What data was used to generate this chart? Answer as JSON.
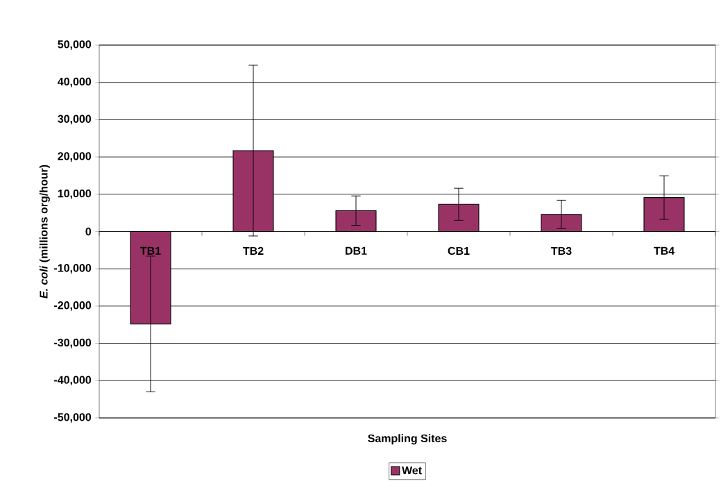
{
  "chart_data": {
    "type": "bar",
    "xlabel": "Sampling Sites",
    "ylabel": "*E. coli* (millions org/hour)",
    "categories": [
      "TB1",
      "TB2",
      "DB1",
      "CB1",
      "TB3",
      "TB4"
    ],
    "series": [
      {
        "name": "Wet",
        "color": "#993366",
        "values": [
          -24800,
          21700,
          5600,
          7300,
          4600,
          9100
        ],
        "errors": [
          18200,
          22900,
          3950,
          4300,
          3800,
          5850
        ]
      }
    ],
    "ylim": [
      -50000,
      50000
    ],
    "yticks": [
      {
        "value": -50000,
        "label": "-50,000"
      },
      {
        "value": -40000,
        "label": "-40,000"
      },
      {
        "value": -30000,
        "label": "-30,000"
      },
      {
        "value": -20000,
        "label": "-20,000"
      },
      {
        "value": -10000,
        "label": "-10,000"
      },
      {
        "value": 0,
        "label": "0"
      },
      {
        "value": 10000,
        "label": "10,000"
      },
      {
        "value": 20000,
        "label": "20,000"
      },
      {
        "value": 30000,
        "label": "30,000"
      },
      {
        "value": 40000,
        "label": "40,000"
      },
      {
        "value": 50000,
        "label": "50,000"
      }
    ],
    "grid": "y",
    "legend": "bottom"
  }
}
